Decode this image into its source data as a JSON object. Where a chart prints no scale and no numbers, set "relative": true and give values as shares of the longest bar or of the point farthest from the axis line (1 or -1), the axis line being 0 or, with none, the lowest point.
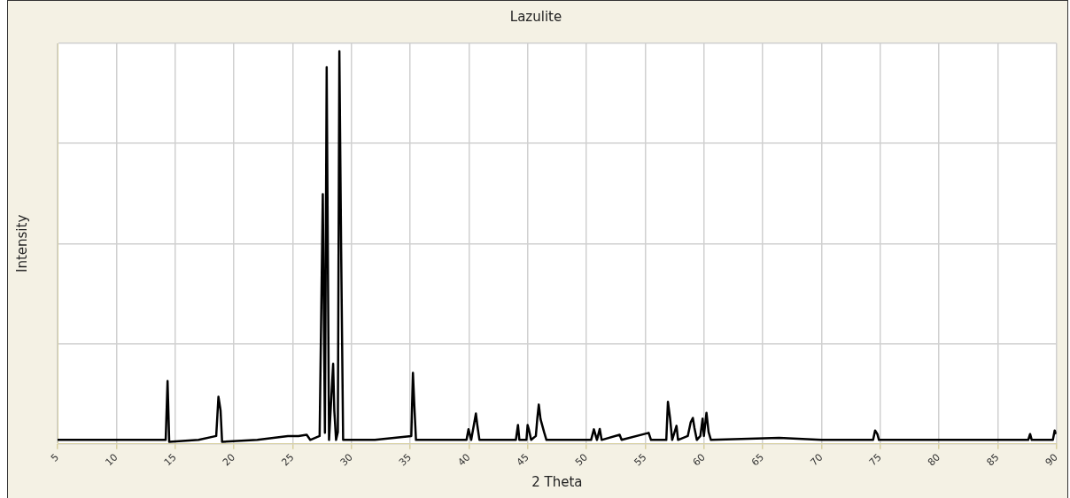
{
  "chart_data": {
    "type": "line",
    "title": "Lazulite",
    "xlabel": "2 Theta",
    "ylabel": "Intensity",
    "relative": true,
    "xlim": [
      5,
      90
    ],
    "xticks": [
      5,
      10,
      15,
      20,
      25,
      30,
      35,
      40,
      45,
      50,
      55,
      60,
      65,
      70,
      75,
      80,
      85,
      90
    ],
    "grid": true,
    "legend": false,
    "marker": "none",
    "line_style": "solid",
    "series": [
      {
        "color": "#000000",
        "x": [
          5,
          6,
          8,
          10,
          12,
          14.2,
          14.36,
          14.5,
          17,
          18.5,
          18.69,
          18.87,
          19.0,
          22,
          24.6,
          25.5,
          26.2,
          26.5,
          27.3,
          27.57,
          27.75,
          27.9,
          28.1,
          28.45,
          28.55,
          28.7,
          28.85,
          28.98,
          29.13,
          29.3,
          32,
          35.1,
          35.24,
          35.36,
          35.5,
          38,
          39.8,
          39.97,
          40.2,
          40.6,
          40.73,
          40.9,
          44.0,
          44.18,
          44.3,
          44.9,
          45.0,
          45.1,
          45.3,
          45.7,
          45.83,
          45.95,
          46.1,
          46.4,
          46.6,
          50.4,
          50.64,
          50.9,
          51.14,
          51.3,
          52.83,
          53,
          55.3,
          55.5,
          56.8,
          56.94,
          57.12,
          57.3,
          57.67,
          57.8,
          58.63,
          58.88,
          59.06,
          59.2,
          59.4,
          59.7,
          59.89,
          60.0,
          60.22,
          60.4,
          60.6,
          66.4,
          70,
          74.4,
          74.57,
          74.76,
          74.9,
          80,
          87.6,
          87.76,
          87.9,
          89.7,
          89.85,
          90
        ],
        "values": [
          0.01,
          0.01,
          0.01,
          0.01,
          0.01,
          0.01,
          0.16,
          0.005,
          0.01,
          0.02,
          0.12,
          0.085,
          0.005,
          0.01,
          0.02,
          0.02,
          0.023,
          0.01,
          0.02,
          0.636,
          0.028,
          0.959,
          0.01,
          0.204,
          0.084,
          0.01,
          0.03,
          1.0,
          0.5,
          0.01,
          0.01,
          0.02,
          0.181,
          0.097,
          0.01,
          0.01,
          0.01,
          0.037,
          0.01,
          0.077,
          0.045,
          0.01,
          0.01,
          0.048,
          0.01,
          0.01,
          0.048,
          0.037,
          0.01,
          0.02,
          0.066,
          0.1,
          0.063,
          0.03,
          0.01,
          0.01,
          0.037,
          0.01,
          0.038,
          0.01,
          0.023,
          0.01,
          0.028,
          0.01,
          0.01,
          0.107,
          0.066,
          0.01,
          0.046,
          0.01,
          0.02,
          0.055,
          0.066,
          0.04,
          0.01,
          0.02,
          0.064,
          0.02,
          0.079,
          0.03,
          0.01,
          0.015,
          0.01,
          0.01,
          0.034,
          0.025,
          0.01,
          0.01,
          0.01,
          0.025,
          0.01,
          0.01,
          0.034,
          0.025
        ]
      }
    ]
  }
}
